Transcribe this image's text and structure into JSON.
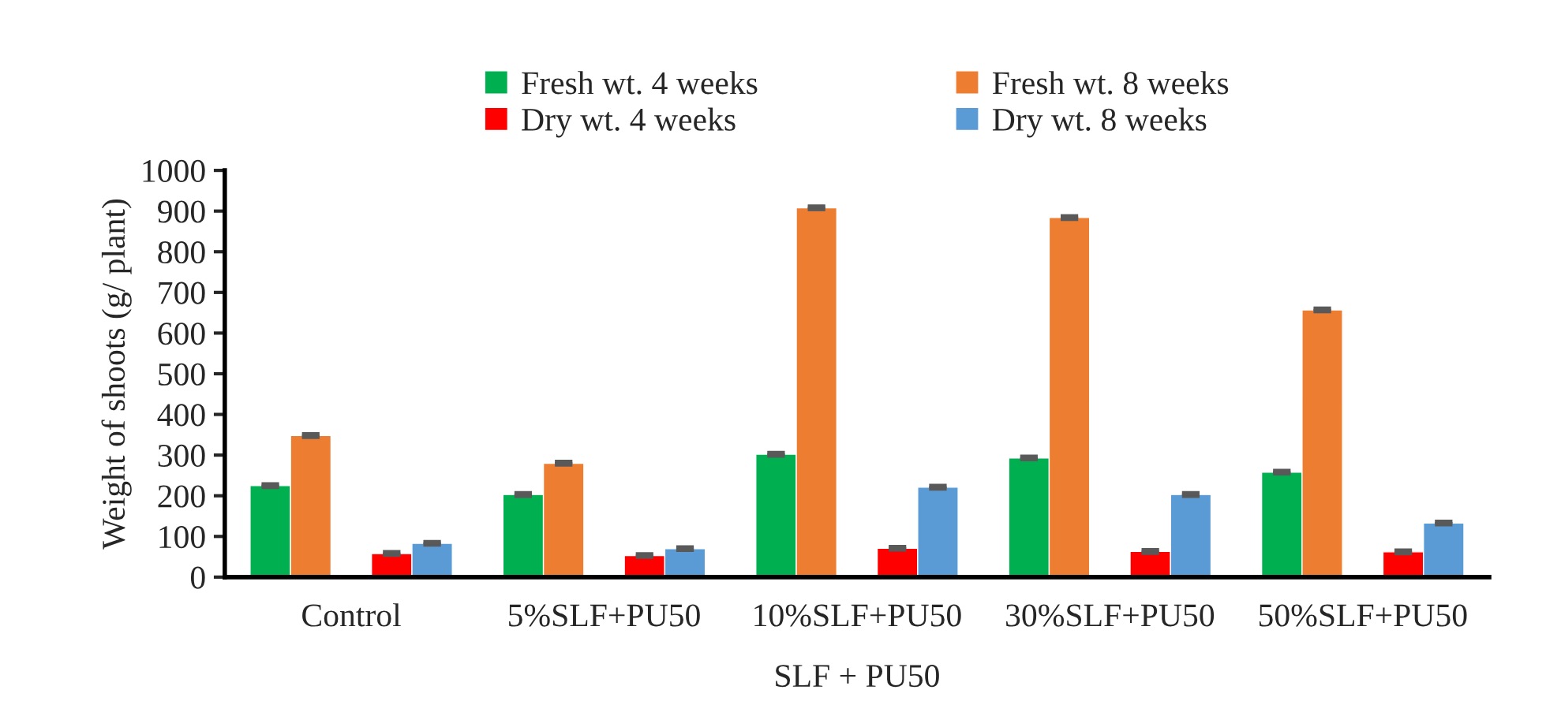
{
  "chart_data": {
    "type": "bar",
    "xlabel": "SLF + PU50",
    "ylabel": "Weight of shoots (g/ plant)",
    "categories": [
      "Control",
      "5%SLF+PU50",
      "10%SLF+PU50",
      "30%SLF+PU50",
      "50%SLF+PU50"
    ],
    "series": [
      {
        "name": "Fresh wt. 4 weeks",
        "color": "#00b050",
        "values": [
          225,
          203,
          302,
          293,
          258
        ],
        "errors": [
          3,
          3,
          3,
          3,
          3
        ]
      },
      {
        "name": "Fresh wt. 8 weeks",
        "color": "#ed7d31",
        "values": [
          348,
          280,
          908,
          884,
          657
        ],
        "errors": [
          3,
          3,
          3,
          3,
          3
        ]
      },
      {
        "name": "Dry wt. 4 weeks",
        "color": "#ff0000",
        "values": [
          58,
          53,
          71,
          63,
          62
        ],
        "errors": [
          3,
          3,
          3,
          3,
          3
        ]
      },
      {
        "name": "Dry wt. 8 weeks",
        "color": "#5b9bd5",
        "values": [
          83,
          70,
          221,
          203,
          133
        ],
        "errors": [
          3,
          3,
          3,
          3,
          3
        ]
      }
    ],
    "ylim": [
      0,
      1000
    ],
    "yticks": [
      0,
      100,
      200,
      300,
      400,
      500,
      600,
      700,
      800,
      900,
      1000
    ],
    "grid": false,
    "legend": "top"
  }
}
